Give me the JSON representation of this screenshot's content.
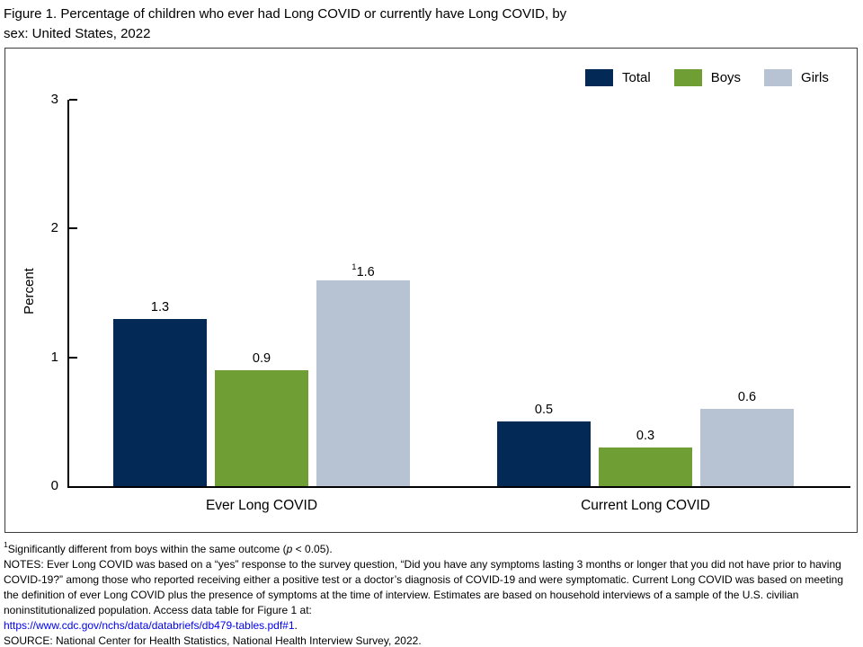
{
  "title": "Figure 1. Percentage of children who ever had Long COVID or currently have Long COVID, by\nsex: United States, 2022",
  "chart_data": {
    "type": "bar",
    "categories": [
      "Ever Long COVID",
      "Current Long COVID"
    ],
    "series": [
      {
        "name": "Total",
        "color": "#032a57",
        "values": [
          1.3,
          0.5
        ],
        "labels": [
          "1.3",
          "0.5"
        ],
        "sup": [
          "",
          ""
        ]
      },
      {
        "name": "Boys",
        "color": "#6e9e34",
        "values": [
          0.9,
          0.3
        ],
        "labels": [
          "0.9",
          "0.3"
        ],
        "sup": [
          "",
          ""
        ]
      },
      {
        "name": "Girls",
        "color": "#b7c3d3",
        "values": [
          1.6,
          0.6
        ],
        "labels": [
          "1.6",
          "0.6"
        ],
        "sup": [
          "1",
          ""
        ]
      }
    ],
    "ylabel": "Percent",
    "xlabel": "",
    "ylim": [
      0,
      3
    ],
    "yticks": [
      0,
      1,
      2,
      3
    ],
    "grid": false,
    "legend_position": "top-right"
  },
  "footnotes": {
    "sig": {
      "sup": "1",
      "pre": "Significantly different from boys within the same outcome (",
      "italic": "p",
      "post": " < 0.05)."
    },
    "notes": "NOTES: Ever Long COVID was based on a “yes” response to the survey question, “Did you have any symptoms lasting 3 months or longer that you did not have prior to having COVID-19?” among those who reported receiving either a positive test or a doctor’s diagnosis of COVID-19 and were symptomatic. Current Long COVID was based on meeting the definition of ever Long COVID plus the presence of symptoms at the time of interview. Estimates are based on household interviews of a sample of the U.S. civilian noninstitutionalized population. Access data table for Figure 1 at:",
    "link": "https://www.cdc.gov/nchs/data/databriefs/db479-tables.pdf#1",
    "link_suffix": ".",
    "source": "SOURCE: National Center for Health Statistics, National Health Interview Survey, 2022."
  }
}
